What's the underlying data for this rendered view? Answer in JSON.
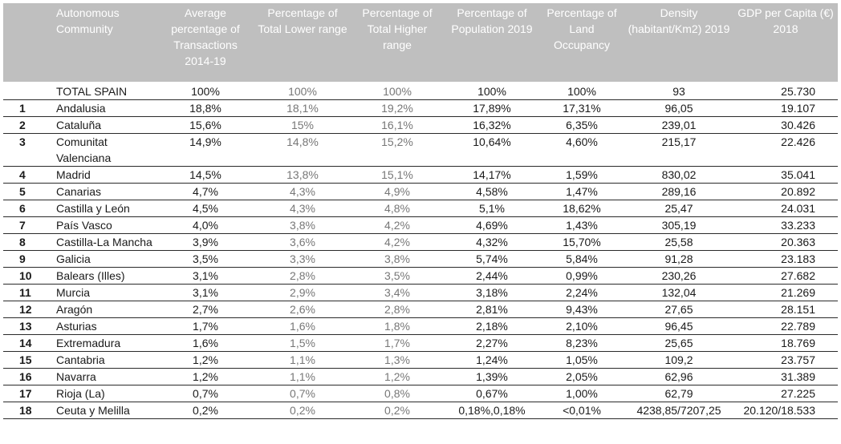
{
  "headers": [
    "",
    "Autonomous Community",
    "Average percentage of Transactions 2014-19",
    "Percentage of Total Lower range",
    "Percentage of Total Higher range",
    "Percentage of Population 2019",
    "Percentage of Land Occupancy",
    "Density (habitant/Km2) 2019",
    "GDP per Capita (€) 2018"
  ],
  "total": {
    "name": "TOTAL SPAIN",
    "avg": "100%",
    "lower": "100%",
    "higher": "100%",
    "population": "100%",
    "land": "100%",
    "density": "93",
    "gdp": "25.730"
  },
  "rows": [
    {
      "n": "1",
      "name": "Andalusia",
      "avg": "18,8%",
      "lower": "18,1%",
      "higher": "19,2%",
      "population": "17,89%",
      "land": "17,31%",
      "density": "96,05",
      "gdp": "19.107"
    },
    {
      "n": "2",
      "name": "Cataluña",
      "avg": "15,6%",
      "lower": "15%",
      "higher": "16,1%",
      "population": "16,32%",
      "land": "6,35%",
      "density": "239,01",
      "gdp": "30.426"
    },
    {
      "n": "3",
      "name": "Comunitat Valenciana",
      "avg": "14,9%",
      "lower": "14,8%",
      "higher": "15,2%",
      "population": "10,64%",
      "land": "4,60%",
      "density": "215,17",
      "gdp": "22.426"
    },
    {
      "n": "4",
      "name": "Madrid",
      "avg": "14,5%",
      "lower": "13,8%",
      "higher": "15,1%",
      "population": "14,17%",
      "land": "1,59%",
      "density": "830,02",
      "gdp": "35.041"
    },
    {
      "n": "5",
      "name": "Canarias",
      "avg": "4,7%",
      "lower": "4,3%",
      "higher": "4,9%",
      "population": "4,58%",
      "land": "1,47%",
      "density": "289,16",
      "gdp": "20.892"
    },
    {
      "n": "6",
      "name": "Castilla y León",
      "avg": "4,5%",
      "lower": "4,3%",
      "higher": "4,8%",
      "population": "5,1%",
      "land": "18,62%",
      "density": "25,47",
      "gdp": "24.031"
    },
    {
      "n": "7",
      "name": "País Vasco",
      "avg": "4,0%",
      "lower": "3,8%",
      "higher": "4,2%",
      "population": "4,69%",
      "land": "1,43%",
      "density": "305,19",
      "gdp": "33.233"
    },
    {
      "n": "8",
      "name": "Castilla-La Mancha",
      "avg": "3,9%",
      "lower": "3,6%",
      "higher": "4,2%",
      "population": "4,32%",
      "land": "15,70%",
      "density": "25,58",
      "gdp": "20.363"
    },
    {
      "n": "9",
      "name": "Galicia",
      "avg": "3,5%",
      "lower": "3,3%",
      "higher": "3,8%",
      "population": "5,74%",
      "land": "5,84%",
      "density": "91,28",
      "gdp": "23.183"
    },
    {
      "n": "10",
      "name": "Balears (Illes)",
      "avg": "3,1%",
      "lower": "2,8%",
      "higher": "3,5%",
      "population": "2,44%",
      "land": "0,99%",
      "density": "230,26",
      "gdp": "27.682"
    },
    {
      "n": "11",
      "name": "Murcia",
      "avg": "3,1%",
      "lower": "2,9%",
      "higher": "3,4%",
      "population": "3,18%",
      "land": "2,24%",
      "density": "132,04",
      "gdp": "21.269"
    },
    {
      "n": "12",
      "name": "Aragón",
      "avg": "2,7%",
      "lower": "2,6%",
      "higher": "2,8%",
      "population": "2,81%",
      "land": "9,43%",
      "density": "27,65",
      "gdp": "28.151"
    },
    {
      "n": "13",
      "name": "Asturias",
      "avg": "1,7%",
      "lower": "1,6%",
      "higher": "1,8%",
      "population": "2,18%",
      "land": "2,10%",
      "density": "96,45",
      "gdp": "22.789"
    },
    {
      "n": "14",
      "name": "Extremadura",
      "avg": "1,6%",
      "lower": "1,5%",
      "higher": "1,7%",
      "population": "2,27%",
      "land": "8,23%",
      "density": "25,65",
      "gdp": "18.769"
    },
    {
      "n": "15",
      "name": "Cantabria",
      "avg": "1,2%",
      "lower": "1,1%",
      "higher": "1,3%",
      "population": "1,24%",
      "land": "1,05%",
      "density": "109,2",
      "gdp": "23.757"
    },
    {
      "n": "16",
      "name": "Navarra",
      "avg": "1,2%",
      "lower": "1,1%",
      "higher": "1,2%",
      "population": "1,39%",
      "land": "2,05%",
      "density": "62,96",
      "gdp": "31.389"
    },
    {
      "n": "17",
      "name": "Rioja (La)",
      "avg": "0,7%",
      "lower": "0,7%",
      "higher": "0,8%",
      "population": "0,67%",
      "land": "1,00%",
      "density": "62,79",
      "gdp": "27.225"
    },
    {
      "n": "18",
      "name": "Ceuta y Melilla",
      "avg": "0,2%",
      "lower": "0,2%",
      "higher": "0,2%",
      "population": "0,18%,0,18%",
      "land": "<0,01%",
      "density": "4238,85/7207,25",
      "gdp": "20.120/18.533"
    }
  ]
}
